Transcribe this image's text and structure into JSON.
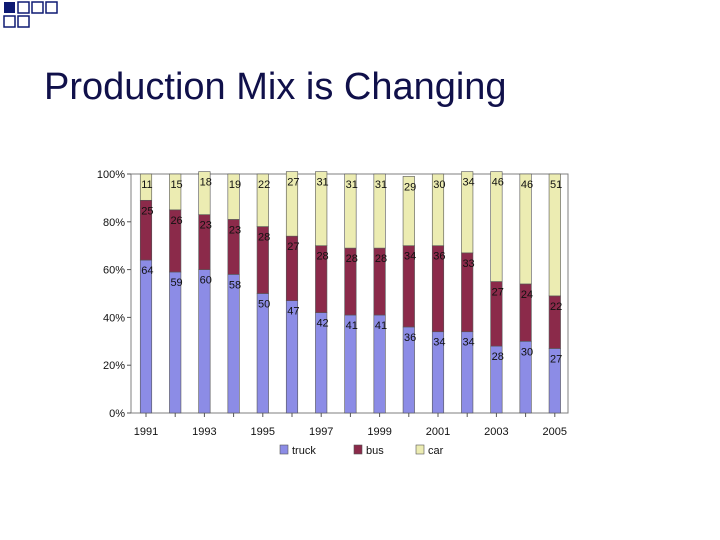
{
  "slide": {
    "title": "Production Mix is Changing"
  },
  "colors": {
    "title": "#10104a",
    "decoration": "#0e1a73",
    "truck": "#8c8ce6",
    "bus": "#8b2a4a",
    "car": "#ececb2",
    "plot_border": "#7f7f7f"
  },
  "chart_data": {
    "type": "bar",
    "stacked": true,
    "normalized": true,
    "x": [
      1991,
      1992,
      1993,
      1994,
      1995,
      1996,
      1997,
      1998,
      1999,
      2000,
      2001,
      2002,
      2003,
      2004,
      2005
    ],
    "x_tick_labels": [
      "1991",
      "",
      "1993",
      "",
      "1995",
      "",
      "1997",
      "",
      "1999",
      "",
      "2001",
      "",
      "2003",
      "",
      "2005"
    ],
    "y_ticks": [
      "0%",
      "20%",
      "40%",
      "60%",
      "80%",
      "100%"
    ],
    "ylim": [
      0,
      100
    ],
    "legend_position": "bottom",
    "grid": false,
    "series": [
      {
        "name": "truck",
        "color": "#8c8ce6",
        "values": [
          64,
          59,
          60,
          58,
          50,
          47,
          42,
          41,
          41,
          36,
          34,
          34,
          28,
          30,
          27
        ]
      },
      {
        "name": "bus",
        "color": "#8b2a4a",
        "values": [
          25,
          26,
          23,
          23,
          28,
          27,
          28,
          28,
          28,
          34,
          36,
          33,
          27,
          24,
          22
        ]
      },
      {
        "name": "car",
        "color": "#ececb2",
        "values": [
          11,
          15,
          18,
          19,
          22,
          27,
          31,
          31,
          31,
          29,
          30,
          34,
          46,
          46,
          51
        ]
      }
    ],
    "title": "",
    "xlabel": "",
    "ylabel": ""
  }
}
